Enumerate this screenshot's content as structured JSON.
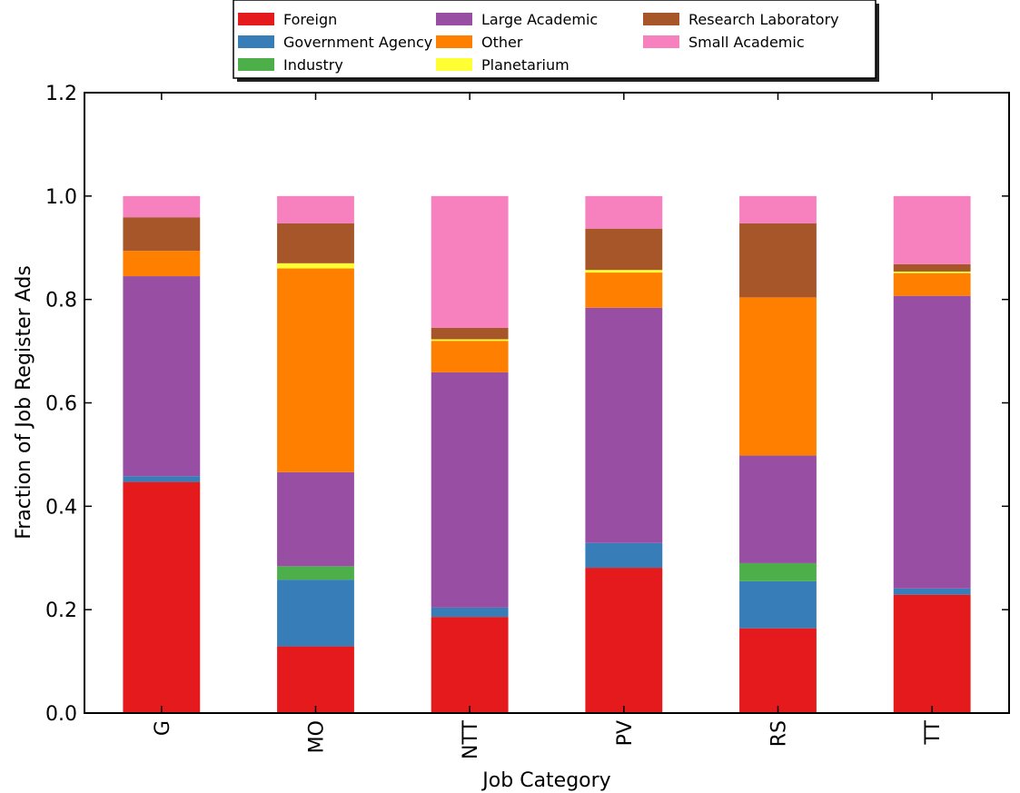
{
  "chart_data": {
    "type": "bar",
    "stacked": true,
    "title": "",
    "xlabel": "Job Category",
    "ylabel": "Fraction of Job Register Ads",
    "ylim": [
      0,
      1.2
    ],
    "yticks": [
      "0.0",
      "0.2",
      "0.4",
      "0.6",
      "0.8",
      "1.0",
      "1.2"
    ],
    "grid": false,
    "legend_position": "top-center",
    "categories": [
      "G",
      "MO",
      "NTT",
      "PV",
      "RS",
      "TT"
    ],
    "series": [
      {
        "name": "Foreign",
        "color": "#e41a1c",
        "values": [
          0.447,
          0.129,
          0.186,
          0.281,
          0.164,
          0.229
        ]
      },
      {
        "name": "Government Agency",
        "color": "#377eb8",
        "values": [
          0.011,
          0.129,
          0.018,
          0.048,
          0.091,
          0.012
        ]
      },
      {
        "name": "Industry",
        "color": "#4daf4a",
        "values": [
          0.0,
          0.026,
          0.0,
          0.0,
          0.035,
          0.0
        ]
      },
      {
        "name": "Large Academic",
        "color": "#984ea3",
        "values": [
          0.387,
          0.182,
          0.455,
          0.455,
          0.208,
          0.566
        ]
      },
      {
        "name": "Other",
        "color": "#ff7f00",
        "values": [
          0.049,
          0.394,
          0.061,
          0.068,
          0.306,
          0.044
        ]
      },
      {
        "name": "Planetarium",
        "color": "#ffff33",
        "values": [
          0.0,
          0.01,
          0.003,
          0.005,
          0.0,
          0.003
        ]
      },
      {
        "name": "Research Laboratory",
        "color": "#a65628",
        "values": [
          0.065,
          0.077,
          0.022,
          0.08,
          0.143,
          0.014
        ]
      },
      {
        "name": "Small Academic",
        "color": "#f781bf",
        "values": [
          0.041,
          0.053,
          0.255,
          0.063,
          0.053,
          0.132
        ]
      }
    ]
  }
}
